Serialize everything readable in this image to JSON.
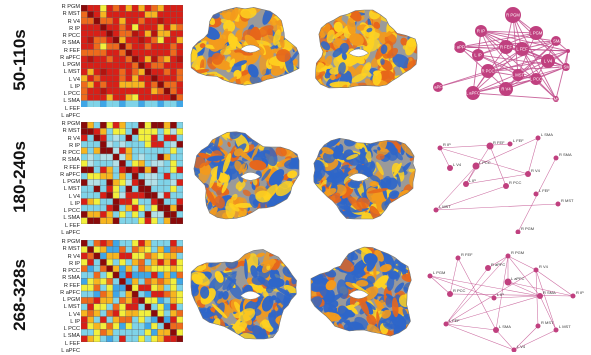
{
  "rows": [
    {
      "label": "50-110s",
      "connectivity_level": "high"
    },
    {
      "label": "180-240s",
      "connectivity_level": "mixed"
    },
    {
      "label": "268-328s",
      "connectivity_level": "medium"
    }
  ],
  "roi_labels": [
    "R PGM",
    "R MST",
    "R V4",
    "R IP",
    "R PCC",
    "R SMA",
    "R FEF",
    "R aPFC",
    "L PGM",
    "L MST",
    "L V4",
    "L IP",
    "L PCC",
    "L SMA",
    "L FEF",
    "L aPFC"
  ],
  "networks": [
    {
      "nodes": [
        {
          "id": "PGM1",
          "label": "R PGM"
        },
        {
          "id": "PGM2",
          "label": "L PGM"
        },
        {
          "id": "IP1",
          "label": "R IP"
        },
        {
          "id": "FEF1",
          "label": "R FEF"
        },
        {
          "id": "FEF2",
          "label": "L FEF"
        },
        {
          "id": "SMA1",
          "label": "L SMA"
        },
        {
          "id": "PCC1",
          "label": "L PCC"
        },
        {
          "id": "V41",
          "label": "L V4"
        },
        {
          "id": "aPFC1",
          "label": "R aPFC"
        },
        {
          "id": "aPFC2",
          "label": "L aPFC"
        },
        {
          "id": "aPFC3",
          "label": "L aPFC"
        },
        {
          "id": "MST1",
          "label": "R MST"
        },
        {
          "id": "MST2",
          "label": "L MST"
        },
        {
          "id": "V42",
          "label": "R V4"
        },
        {
          "id": "PCC2",
          "label": "R PCC"
        },
        {
          "id": "SMA2",
          "label": "R SMA"
        },
        {
          "id": "IP2",
          "label": "L IP"
        },
        {
          "id": "x",
          "label": ""
        }
      ]
    },
    {
      "nodes": [
        {
          "id": "IP1",
          "label": "R IP"
        },
        {
          "id": "FEF1",
          "label": "R FEF"
        },
        {
          "id": "FEF2",
          "label": "L FEF"
        },
        {
          "id": "SMA1",
          "label": "L SMA"
        },
        {
          "id": "SMA2",
          "label": "R SMA"
        },
        {
          "id": "V41",
          "label": "L V4"
        },
        {
          "id": "PCC1",
          "label": "L PCC"
        },
        {
          "id": "PCC2",
          "label": "R PCC"
        },
        {
          "id": "V42",
          "label": "R V4"
        },
        {
          "id": "MST1",
          "label": "R MST"
        },
        {
          "id": "MST2",
          "label": "L MST"
        },
        {
          "id": "IP2",
          "label": "L IP"
        },
        {
          "id": "FEF3",
          "label": "L FEF"
        },
        {
          "id": "PGM1",
          "label": "R PGM"
        }
      ]
    },
    {
      "nodes": [
        {
          "id": "PGM1",
          "label": "R PGM"
        },
        {
          "id": "FEF1",
          "label": "R FEF"
        },
        {
          "id": "aPFC1",
          "label": "R aPFC"
        },
        {
          "id": "V41",
          "label": "R V4"
        },
        {
          "id": "PGM2",
          "label": "L PGM"
        },
        {
          "id": "aPFC2",
          "label": "L aPFC"
        },
        {
          "id": "PCC1",
          "label": "R PCC"
        },
        {
          "id": "IP1",
          "label": "L IP"
        },
        {
          "id": "SMA1",
          "label": "R SMA"
        },
        {
          "id": "IP2",
          "label": "R IP"
        },
        {
          "id": "FEF2",
          "label": "L FEF"
        },
        {
          "id": "MST1",
          "label": "R MST"
        },
        {
          "id": "SMA2",
          "label": "L SMA"
        },
        {
          "id": "MST2",
          "label": "L MST"
        },
        {
          "id": "V42",
          "label": "L V4"
        }
      ]
    }
  ],
  "colors": {
    "network_node": "#c0407f",
    "network_edge": "#c2518f",
    "brain_gray": "#9a9a9a",
    "brain_blue": "#2e66c9",
    "brain_orange": "#f39a1c",
    "brain_yellow": "#ffd21f"
  }
}
